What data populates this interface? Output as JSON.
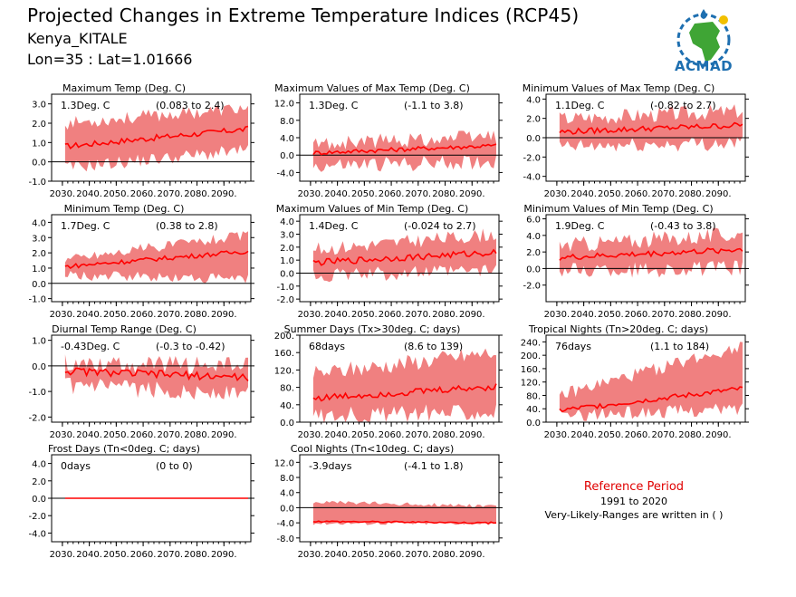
{
  "header": {
    "title": "Projected Changes in Extreme Temperature Indices (RCP45)",
    "station": "Kenya_KITALE",
    "coords": "Lon=35 : Lat=1.01666"
  },
  "logo": {
    "text": "ACMAD"
  },
  "reference": {
    "title": "Reference Period",
    "years": "1991 to 2020",
    "note": "Very-Likely-Ranges are written in ( )"
  },
  "colors": {
    "band": "#f08080",
    "line": "#ff0000",
    "zero": "#000000",
    "accent_blue": "#1e6fb0",
    "accent_green": "#3fa535"
  },
  "x_ticks": [
    "2030.",
    "2040.",
    "2050.",
    "2060.",
    "2070.",
    "2080.",
    "2090."
  ],
  "chart_data": [
    {
      "type": "area",
      "title": "Maximum Temp (Deg. C)",
      "stat": "1.3Deg. C",
      "range": "(0.083 to 2.4)",
      "xlim": [
        2026,
        2100
      ],
      "ylim": [
        -1.0,
        3.5
      ],
      "yticks": [
        -1.0,
        0.0,
        1.0,
        2.0,
        3.0
      ],
      "median": {
        "start": 0.8,
        "end": 1.7,
        "noise": 0.15
      },
      "band": {
        "low_start": -0.3,
        "low_end": 0.6,
        "high_start": 2.0,
        "high_end": 2.8,
        "noise": 0.35
      }
    },
    {
      "type": "area",
      "title": "Maximum Values of Max Temp (Deg. C)",
      "stat": "1.3Deg. C",
      "range": "(-1.1 to 3.8)",
      "xlim": [
        2026,
        2100
      ],
      "ylim": [
        -6.0,
        14.0
      ],
      "yticks": [
        -4.0,
        0.0,
        4.0,
        8.0,
        12.0
      ],
      "median": {
        "start": 0.5,
        "end": 2.2,
        "noise": 0.5
      },
      "band": {
        "low_start": -2.5,
        "low_end": -1.5,
        "high_start": 2.5,
        "high_end": 4.5,
        "noise": 1.8
      }
    },
    {
      "type": "area",
      "title": "Minimum Values of Max Temp (Deg. C)",
      "stat": "1.1Deg. C",
      "range": "(-0.82 to 2.7)",
      "xlim": [
        2026,
        2100
      ],
      "ylim": [
        -4.5,
        4.5
      ],
      "yticks": [
        -4.0,
        -2.0,
        0.0,
        2.0,
        4.0
      ],
      "median": {
        "start": 0.6,
        "end": 1.3,
        "noise": 0.3
      },
      "band": {
        "low_start": -1.0,
        "low_end": -0.5,
        "high_start": 2.0,
        "high_end": 2.8,
        "noise": 0.8
      }
    },
    {
      "type": "area",
      "title": "Minimum Temp (Deg. C)",
      "stat": "1.7Deg. C",
      "range": "(0.38 to 2.8)",
      "xlim": [
        2026,
        2100
      ],
      "ylim": [
        -1.2,
        4.5
      ],
      "yticks": [
        -1.0,
        0.0,
        1.0,
        2.0,
        3.0,
        4.0
      ],
      "median": {
        "start": 1.1,
        "end": 2.1,
        "noise": 0.15
      },
      "band": {
        "low_start": 0.5,
        "low_end": 0.3,
        "high_start": 1.6,
        "high_end": 3.2,
        "noise": 0.35
      }
    },
    {
      "type": "area",
      "title": "Maximum Values of Min Temp (Deg. C)",
      "stat": "1.4Deg. C",
      "range": "(-0.024 to 2.7)",
      "xlim": [
        2026,
        2100
      ],
      "ylim": [
        -2.2,
        4.5
      ],
      "yticks": [
        -2.0,
        -1.0,
        0.0,
        1.0,
        2.0,
        3.0,
        4.0
      ],
      "median": {
        "start": 0.8,
        "end": 1.6,
        "noise": 0.25
      },
      "band": {
        "low_start": -0.2,
        "low_end": 0.2,
        "high_start": 1.8,
        "high_end": 3.0,
        "noise": 0.55
      }
    },
    {
      "type": "area",
      "title": "Minimum Values of Min Temp (Deg. C)",
      "stat": "1.9Deg. C",
      "range": "(-0.43 to 3.8)",
      "xlim": [
        2026,
        2100
      ],
      "ylim": [
        -4.0,
        6.5
      ],
      "yticks": [
        -2.0,
        0.0,
        2.0,
        4.0,
        6.0
      ],
      "median": {
        "start": 1.3,
        "end": 2.3,
        "noise": 0.35
      },
      "band": {
        "low_start": -0.2,
        "low_end": 0.0,
        "high_start": 2.8,
        "high_end": 4.2,
        "noise": 1.0
      }
    },
    {
      "type": "area",
      "title": "Diurnal Temp Range (Deg. C)",
      "stat": "-0.43Deg. C",
      "range": "(-0.3 to -0.42)",
      "xlim": [
        2026,
        2100
      ],
      "ylim": [
        -2.2,
        1.2
      ],
      "yticks": [
        -2.0,
        -1.0,
        0.0,
        1.0
      ],
      "median": {
        "start": -0.2,
        "end": -0.45,
        "noise": 0.15
      },
      "band": {
        "low_start": -0.8,
        "low_end": -1.1,
        "high_start": 0.1,
        "high_end": 0.0,
        "noise": 0.35
      }
    },
    {
      "type": "area",
      "title": "Summer Days (Tx>30deg. C; days)",
      "stat": "68days",
      "range": "(8.6 to 139)",
      "xlim": [
        2026,
        2100
      ],
      "ylim": [
        0,
        200
      ],
      "yticks": [
        0,
        40,
        80,
        120,
        160,
        200
      ],
      "median": {
        "start": 55,
        "end": 82,
        "noise": 8
      },
      "band": {
        "low_start": 15,
        "low_end": 25,
        "high_start": 110,
        "high_end": 160,
        "noise": 20
      }
    },
    {
      "type": "area",
      "title": "Tropical Nights (Tn>20deg. C; days)",
      "stat": "76days",
      "range": "(1.1 to 184)",
      "xlim": [
        2026,
        2100
      ],
      "ylim": [
        0,
        260
      ],
      "yticks": [
        0,
        40,
        80,
        120,
        160,
        200,
        240
      ],
      "median": {
        "start": 35,
        "end": 100,
        "noise": 8
      },
      "band": {
        "low_start": 20,
        "low_end": 40,
        "high_start": 80,
        "high_end": 230,
        "noise": 20
      }
    },
    {
      "type": "area",
      "title": "Frost Days (Tn<0deg. C; days)",
      "stat": "0days",
      "range": "(0 to 0)",
      "xlim": [
        2026,
        2100
      ],
      "ylim": [
        -5.0,
        5.0
      ],
      "yticks": [
        -4.0,
        -2.0,
        0.0,
        2.0,
        4.0
      ],
      "median": {
        "start": 0,
        "end": 0,
        "noise": 0
      },
      "band": {
        "low_start": 0,
        "low_end": 0,
        "high_start": 0,
        "high_end": 0,
        "noise": 0
      }
    },
    {
      "type": "area",
      "title": "Cool Nights (Tn<10deg. C; days)",
      "stat": "-3.9days",
      "range": "(-4.1 to 1.8)",
      "xlim": [
        2026,
        2100
      ],
      "ylim": [
        -9.0,
        14.0
      ],
      "yticks": [
        -8.0,
        -4.0,
        0.0,
        4.0,
        8.0,
        12.0
      ],
      "median": {
        "start": -3.6,
        "end": -4.0,
        "noise": 0.2
      },
      "band": {
        "low_start": -4.1,
        "low_end": -4.1,
        "high_start": 1.5,
        "high_end": 0.5,
        "noise": 0.5
      }
    }
  ]
}
